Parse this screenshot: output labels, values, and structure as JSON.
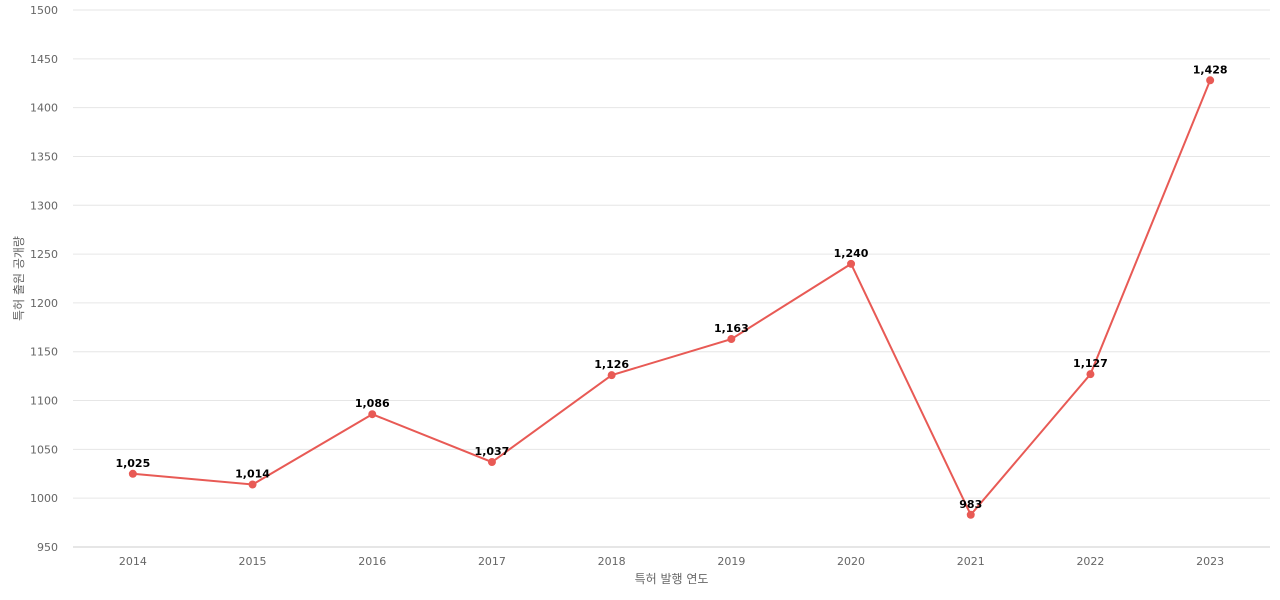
{
  "chart_data": {
    "type": "line",
    "title": "",
    "xlabel": "특허 발행 연도",
    "ylabel": "특허 출원 공개량",
    "x": [
      "2014",
      "2015",
      "2016",
      "2017",
      "2018",
      "2019",
      "2020",
      "2021",
      "2022",
      "2023"
    ],
    "series": [
      {
        "values": [
          1025,
          1014,
          1086,
          1037,
          1126,
          1163,
          1240,
          983,
          1127,
          1428
        ],
        "data_labels": [
          "1,025",
          "1,014",
          "1,086",
          "1,037",
          "1,126",
          "1,163",
          "1,240",
          "983",
          "1,127",
          "1,428"
        ],
        "color": "#e85a55"
      }
    ],
    "ylim": [
      950,
      1500
    ],
    "yticks": [
      "950",
      "1000",
      "1050",
      "1100",
      "1150",
      "1200",
      "1250",
      "1300",
      "1350",
      "1400",
      "1450",
      "1500"
    ],
    "grid": true,
    "legend": "none"
  }
}
